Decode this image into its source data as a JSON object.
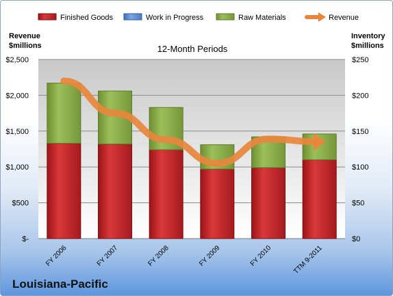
{
  "colors": {
    "finished_goods": "#c0282b",
    "work_in_progress": "#5b8fd6",
    "raw_materials": "#8cad4a",
    "revenue": "#e8873c"
  },
  "legend": [
    {
      "label": "Finished Goods",
      "key": "finished_goods",
      "kind": "bar"
    },
    {
      "label": "Work in Progress",
      "key": "work_in_progress",
      "kind": "bar"
    },
    {
      "label": "Raw Materials",
      "key": "raw_materials",
      "kind": "bar"
    },
    {
      "label": "Revenue",
      "key": "revenue",
      "kind": "arrow"
    }
  ],
  "company": "Louisiana-Pacific",
  "chart_data": {
    "type": "bar",
    "stacked": true,
    "title": "12-Month Periods",
    "ylabel_left": [
      "Revenue",
      "$millions"
    ],
    "ylabel_right": [
      "Inventory",
      "$millions"
    ],
    "categories": [
      "FY 2006",
      "FY 2007",
      "FY 2008",
      "FY 2009",
      "FY 2010",
      "TTM 9-2011"
    ],
    "series": [
      {
        "name": "Finished Goods",
        "axis": "right",
        "values": [
          133,
          132,
          124,
          97,
          99,
          110
        ]
      },
      {
        "name": "Work in Progress",
        "axis": "right",
        "values": [
          0,
          0,
          0,
          0,
          0,
          0
        ]
      },
      {
        "name": "Raw Materials",
        "axis": "right",
        "values": [
          84,
          74,
          59,
          34,
          43,
          36
        ]
      },
      {
        "name": "Revenue",
        "axis": "left",
        "type": "line",
        "values": [
          2200,
          1750,
          1380,
          1050,
          1390,
          1350
        ]
      }
    ],
    "ylim_left": [
      0,
      2500
    ],
    "ylim_right": [
      0,
      250
    ],
    "left_ticks": [
      "$-",
      "$500",
      "$1,000",
      "$1,500",
      "$2,000",
      "$2,500"
    ],
    "right_ticks": [
      "$0",
      "$50",
      "$100",
      "$150",
      "$200",
      "$250"
    ],
    "grid": true,
    "legend_position": "top"
  }
}
